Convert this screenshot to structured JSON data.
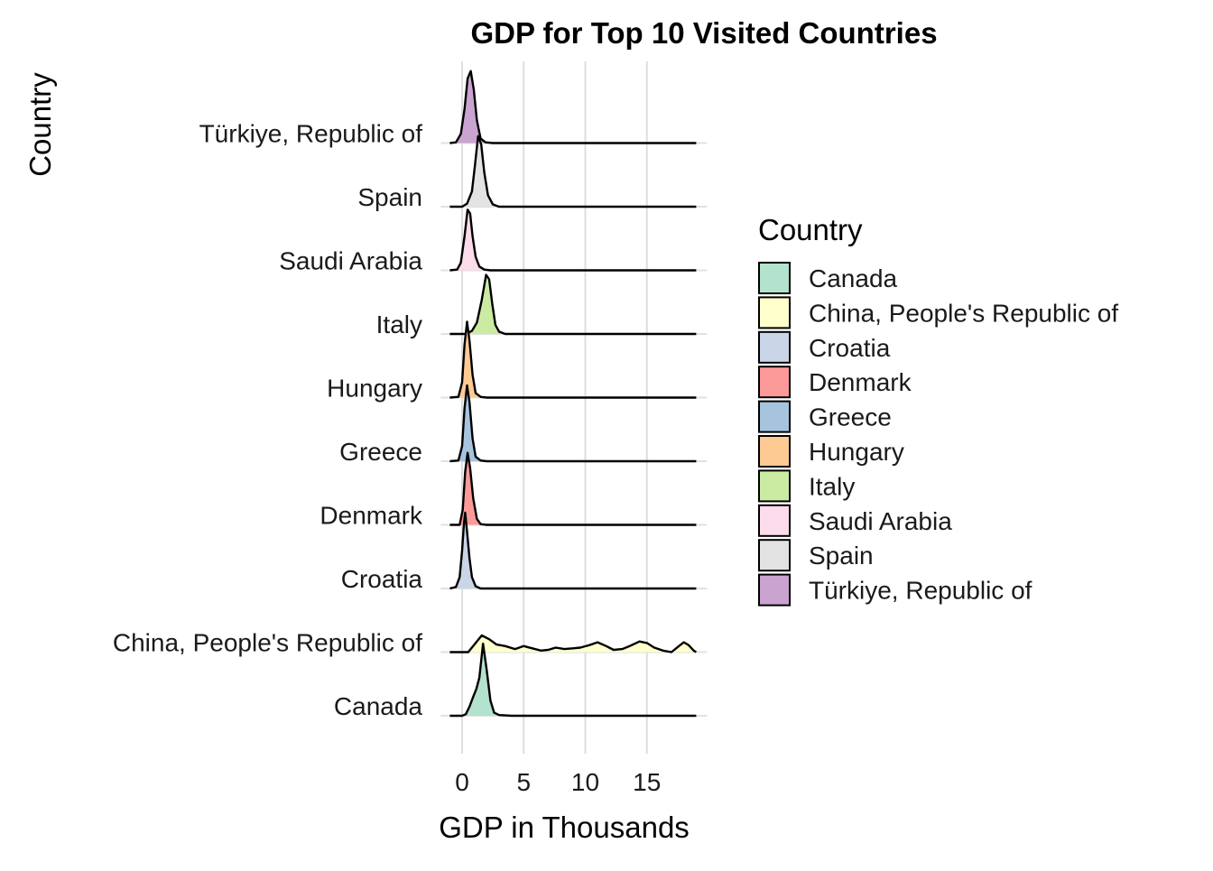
{
  "chart_data": {
    "type": "ridgeline",
    "title": "GDP for Top 10 Visited Countries",
    "xlabel": "GDP in Thousands",
    "ylabel": "Country",
    "xlim": [
      -1,
      19
    ],
    "x_ticks": [
      0,
      5,
      10,
      15
    ],
    "grid": "vertical only",
    "legend": {
      "title": "Country",
      "placement": "right"
    },
    "series": [
      {
        "name": "Canada",
        "color": "#B3E2CD",
        "density": [
          [
            -1,
            0
          ],
          [
            0,
            0
          ],
          [
            0.3,
            0.02
          ],
          [
            0.6,
            0.12
          ],
          [
            0.9,
            0.25
          ],
          [
            1.15,
            0.35
          ],
          [
            1.4,
            0.5
          ],
          [
            1.7,
            0.95
          ],
          [
            2,
            0.6
          ],
          [
            2.3,
            0.2
          ],
          [
            2.6,
            0.04
          ],
          [
            3,
            0.01
          ],
          [
            4,
            0
          ],
          [
            19,
            0
          ]
        ]
      },
      {
        "name": "China, People's Republic of",
        "color": "#FFFFCC",
        "density": [
          [
            -1,
            0
          ],
          [
            0.5,
            0
          ],
          [
            1,
            0.1
          ],
          [
            1.6,
            0.22
          ],
          [
            2.2,
            0.17
          ],
          [
            2.8,
            0.1
          ],
          [
            3.5,
            0.08
          ],
          [
            4.3,
            0.04
          ],
          [
            5,
            0.08
          ],
          [
            5.7,
            0.05
          ],
          [
            6.4,
            0.02
          ],
          [
            7,
            0.03
          ],
          [
            7.6,
            0.06
          ],
          [
            8.3,
            0.04
          ],
          [
            9,
            0.05
          ],
          [
            9.6,
            0.06
          ],
          [
            10.3,
            0.09
          ],
          [
            11,
            0.13
          ],
          [
            11.7,
            0.08
          ],
          [
            12.3,
            0.03
          ],
          [
            13,
            0.04
          ],
          [
            13.6,
            0.08
          ],
          [
            14.4,
            0.14
          ],
          [
            15,
            0.12
          ],
          [
            15.6,
            0.06
          ],
          [
            16.3,
            0.02
          ],
          [
            17,
            0.0
          ],
          [
            17.6,
            0.08
          ],
          [
            18,
            0.13
          ],
          [
            18.4,
            0.09
          ],
          [
            18.8,
            0.02
          ],
          [
            19,
            0
          ]
        ]
      },
      {
        "name": "Croatia",
        "color": "#CBD5E8",
        "density": [
          [
            -1,
            0
          ],
          [
            -0.5,
            0.02
          ],
          [
            -0.2,
            0.15
          ],
          [
            0,
            0.5
          ],
          [
            0.15,
            0.85
          ],
          [
            0.25,
            1.0
          ],
          [
            0.4,
            0.75
          ],
          [
            0.6,
            0.4
          ],
          [
            0.8,
            0.15
          ],
          [
            1.1,
            0.03
          ],
          [
            1.5,
            0
          ],
          [
            19,
            0
          ]
        ]
      },
      {
        "name": "Denmark",
        "color": "#FB9A99",
        "density": [
          [
            -1,
            0
          ],
          [
            -0.2,
            0
          ],
          [
            0.05,
            0.2
          ],
          [
            0.25,
            0.7
          ],
          [
            0.45,
            0.95
          ],
          [
            0.65,
            0.75
          ],
          [
            0.9,
            0.35
          ],
          [
            1.2,
            0.08
          ],
          [
            1.5,
            0.01
          ],
          [
            2,
            0
          ],
          [
            19,
            0
          ]
        ]
      },
      {
        "name": "Greece",
        "color": "#A6C4DE",
        "density": [
          [
            -1,
            0
          ],
          [
            -0.3,
            0.01
          ],
          [
            0,
            0.2
          ],
          [
            0.2,
            0.7
          ],
          [
            0.4,
            1.0
          ],
          [
            0.6,
            0.78
          ],
          [
            0.85,
            0.3
          ],
          [
            1.1,
            0.06
          ],
          [
            1.5,
            0.01
          ],
          [
            2,
            0
          ],
          [
            19,
            0
          ]
        ]
      },
      {
        "name": "Hungary",
        "color": "#FDCA93",
        "density": [
          [
            -1,
            0
          ],
          [
            -0.3,
            0.01
          ],
          [
            0,
            0.2
          ],
          [
            0.2,
            0.7
          ],
          [
            0.4,
            1.0
          ],
          [
            0.6,
            0.75
          ],
          [
            0.85,
            0.3
          ],
          [
            1.1,
            0.06
          ],
          [
            1.5,
            0.01
          ],
          [
            2,
            0
          ],
          [
            19,
            0
          ]
        ]
      },
      {
        "name": "Italy",
        "color": "#CCEBA2",
        "density": [
          [
            -1,
            0
          ],
          [
            0.3,
            0
          ],
          [
            0.8,
            0.04
          ],
          [
            1.2,
            0.15
          ],
          [
            1.6,
            0.45
          ],
          [
            1.95,
            0.78
          ],
          [
            2.2,
            0.72
          ],
          [
            2.45,
            0.4
          ],
          [
            2.7,
            0.12
          ],
          [
            3,
            0.03
          ],
          [
            3.5,
            0
          ],
          [
            19,
            0
          ]
        ]
      },
      {
        "name": "Saudi Arabia",
        "color": "#FCDBEB",
        "density": [
          [
            -1,
            0
          ],
          [
            -0.4,
            0.01
          ],
          [
            -0.1,
            0.1
          ],
          [
            0.2,
            0.45
          ],
          [
            0.45,
            0.8
          ],
          [
            0.65,
            0.75
          ],
          [
            0.85,
            0.45
          ],
          [
            1.1,
            0.18
          ],
          [
            1.4,
            0.05
          ],
          [
            1.8,
            0.01
          ],
          [
            2.3,
            0
          ],
          [
            19,
            0
          ]
        ]
      },
      {
        "name": "Spain",
        "color": "#E3E3E3",
        "density": [
          [
            -1,
            0
          ],
          [
            0,
            0
          ],
          [
            0.4,
            0.04
          ],
          [
            0.8,
            0.2
          ],
          [
            1.05,
            0.55
          ],
          [
            1.3,
            0.93
          ],
          [
            1.55,
            0.82
          ],
          [
            1.8,
            0.45
          ],
          [
            2.1,
            0.15
          ],
          [
            2.5,
            0.03
          ],
          [
            3,
            0
          ],
          [
            19,
            0
          ]
        ]
      },
      {
        "name": "Türkiye, Republic of",
        "color": "#CBA3D1",
        "density": [
          [
            -1,
            0
          ],
          [
            -0.5,
            0.01
          ],
          [
            -0.1,
            0.12
          ],
          [
            0.2,
            0.45
          ],
          [
            0.45,
            0.85
          ],
          [
            0.7,
            0.95
          ],
          [
            0.95,
            0.7
          ],
          [
            1.2,
            0.3
          ],
          [
            1.5,
            0.06
          ],
          [
            1.9,
            0.01
          ],
          [
            2.5,
            0
          ],
          [
            19,
            0
          ]
        ]
      }
    ]
  }
}
